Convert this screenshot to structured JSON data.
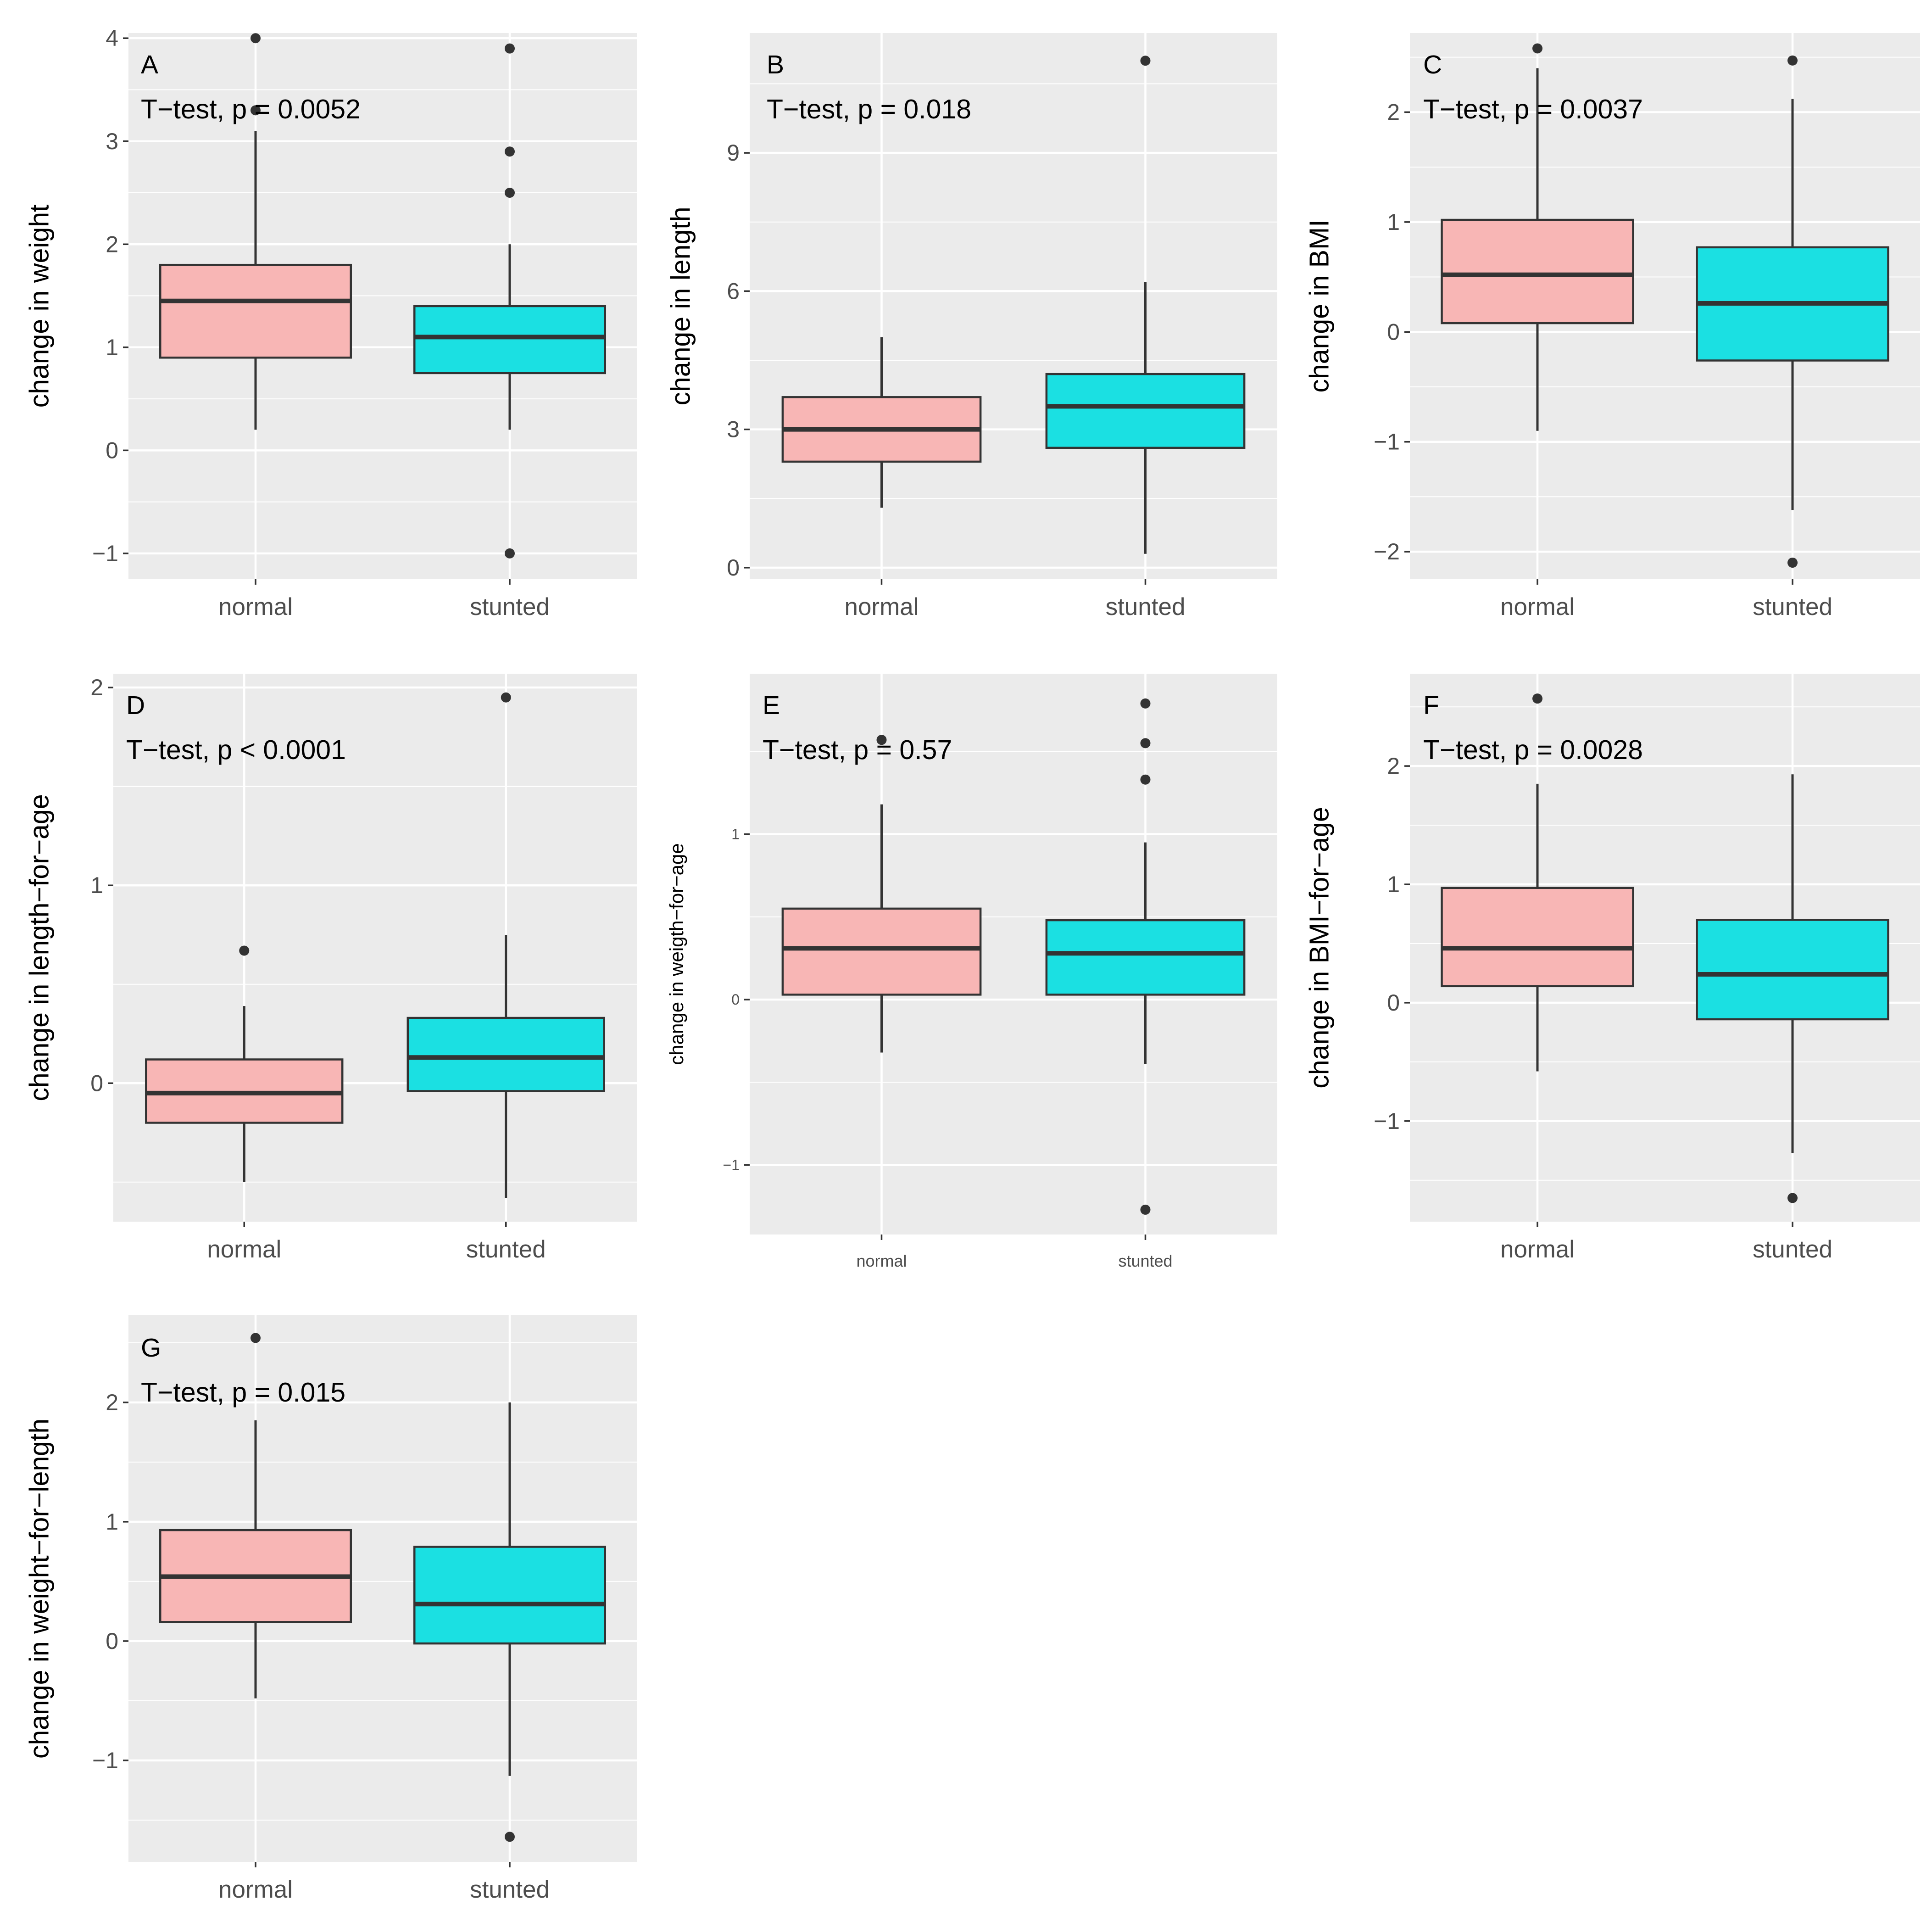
{
  "chart_data": [
    {
      "type": "boxplot",
      "panel_label": "A",
      "annotation": "T−test, p = 0.0052",
      "ylabel": "change in weight",
      "categories": [
        "normal",
        "stunted"
      ],
      "ylim": [
        -1.25,
        4.05
      ],
      "yticks": [
        -1,
        0,
        1,
        2,
        3,
        4
      ],
      "boxes": [
        {
          "name": "normal",
          "q1": 0.9,
          "median": 1.45,
          "q3": 1.8,
          "whisker_low": 0.2,
          "whisker_high": 3.1,
          "outliers": [
            4.0,
            3.3
          ]
        },
        {
          "name": "stunted",
          "q1": 0.75,
          "median": 1.1,
          "q3": 1.4,
          "whisker_low": 0.2,
          "whisker_high": 2.0,
          "outliers": [
            3.9,
            2.9,
            2.5,
            -1.0
          ]
        }
      ]
    },
    {
      "type": "boxplot",
      "panel_label": "B",
      "annotation": "T−test, p = 0.018",
      "ylabel": "change in length",
      "categories": [
        "normal",
        "stunted"
      ],
      "ylim": [
        -0.25,
        11.6
      ],
      "yticks": [
        0,
        3,
        6,
        9
      ],
      "boxes": [
        {
          "name": "normal",
          "q1": 2.3,
          "median": 3.0,
          "q3": 3.7,
          "whisker_low": 1.3,
          "whisker_high": 5.0,
          "outliers": []
        },
        {
          "name": "stunted",
          "q1": 2.6,
          "median": 3.5,
          "q3": 4.2,
          "whisker_low": 0.3,
          "whisker_high": 6.2,
          "outliers": [
            11.0
          ]
        }
      ]
    },
    {
      "type": "boxplot",
      "panel_label": "C",
      "annotation": "T−test, p = 0.0037",
      "ylabel": "change in BMI",
      "categories": [
        "normal",
        "stunted"
      ],
      "ylim": [
        -2.25,
        2.72
      ],
      "yticks": [
        -2,
        -1,
        0,
        1,
        2
      ],
      "boxes": [
        {
          "name": "normal",
          "q1": 0.08,
          "median": 0.52,
          "q3": 1.02,
          "whisker_low": -0.9,
          "whisker_high": 2.4,
          "outliers": [
            2.58
          ]
        },
        {
          "name": "stunted",
          "q1": -0.26,
          "median": 0.26,
          "q3": 0.77,
          "whisker_low": -1.62,
          "whisker_high": 2.12,
          "outliers": [
            2.47,
            -2.1
          ]
        }
      ]
    },
    {
      "type": "boxplot",
      "panel_label": "D",
      "annotation": "T−test, p < 0.0001",
      "ylabel": "change in length−for−age",
      "categories": [
        "normal",
        "stunted"
      ],
      "ylim": [
        -0.7,
        2.07
      ],
      "yticks": [
        0,
        1,
        2
      ],
      "boxes": [
        {
          "name": "normal",
          "q1": -0.2,
          "median": -0.05,
          "q3": 0.12,
          "whisker_low": -0.5,
          "whisker_high": 0.39,
          "outliers": [
            0.67
          ]
        },
        {
          "name": "stunted",
          "q1": -0.04,
          "median": 0.13,
          "q3": 0.33,
          "whisker_low": -0.58,
          "whisker_high": 0.75,
          "outliers": [
            1.95
          ]
        }
      ]
    },
    {
      "type": "boxplot",
      "panel_label": "E",
      "annotation": "T−test, p = 0.57",
      "ylabel": "change in weigth−for−age",
      "categories": [
        "normal",
        "stunted"
      ],
      "ylim": [
        -1.42,
        1.97
      ],
      "yticks": [
        -1,
        0,
        1
      ],
      "small_ticks": true,
      "boxes": [
        {
          "name": "normal",
          "q1": 0.03,
          "median": 0.31,
          "q3": 0.55,
          "whisker_low": -0.32,
          "whisker_high": 1.18,
          "outliers": [
            1.57
          ]
        },
        {
          "name": "stunted",
          "q1": 0.03,
          "median": 0.28,
          "q3": 0.48,
          "whisker_low": -0.39,
          "whisker_high": 0.95,
          "outliers": [
            1.79,
            1.55,
            1.33,
            -1.27
          ]
        }
      ]
    },
    {
      "type": "boxplot",
      "panel_label": "F",
      "annotation": "T−test, p = 0.0028",
      "ylabel": "change in BMI−for−age",
      "categories": [
        "normal",
        "stunted"
      ],
      "ylim": [
        -1.85,
        2.78
      ],
      "yticks": [
        -1,
        0,
        1,
        2
      ],
      "boxes": [
        {
          "name": "normal",
          "q1": 0.14,
          "median": 0.46,
          "q3": 0.97,
          "whisker_low": -0.58,
          "whisker_high": 1.85,
          "outliers": [
            2.57
          ]
        },
        {
          "name": "stunted",
          "q1": -0.14,
          "median": 0.24,
          "q3": 0.7,
          "whisker_low": -1.27,
          "whisker_high": 1.93,
          "outliers": [
            -1.65
          ]
        }
      ]
    },
    {
      "type": "boxplot",
      "panel_label": "G",
      "annotation": "T−test, p = 0.015",
      "ylabel": "change in weight−for−length",
      "categories": [
        "normal",
        "stunted"
      ],
      "ylim": [
        -1.85,
        2.73
      ],
      "yticks": [
        -1,
        0,
        1,
        2
      ],
      "boxes": [
        {
          "name": "normal",
          "q1": 0.16,
          "median": 0.54,
          "q3": 0.93,
          "whisker_low": -0.48,
          "whisker_high": 1.85,
          "outliers": [
            2.54
          ]
        },
        {
          "name": "stunted",
          "q1": -0.02,
          "median": 0.31,
          "q3": 0.79,
          "whisker_low": -1.13,
          "whisker_high": 2.0,
          "outliers": [
            -1.64
          ]
        }
      ]
    }
  ],
  "colors": {
    "normal": "#F8B6B5",
    "stunted": "#1BE0E2",
    "panel_background": "#EBEBEB",
    "grid": "#FFFFFF",
    "box_stroke": "#333333",
    "axis_text": "#4D4D4D",
    "title_text": "#000000"
  }
}
